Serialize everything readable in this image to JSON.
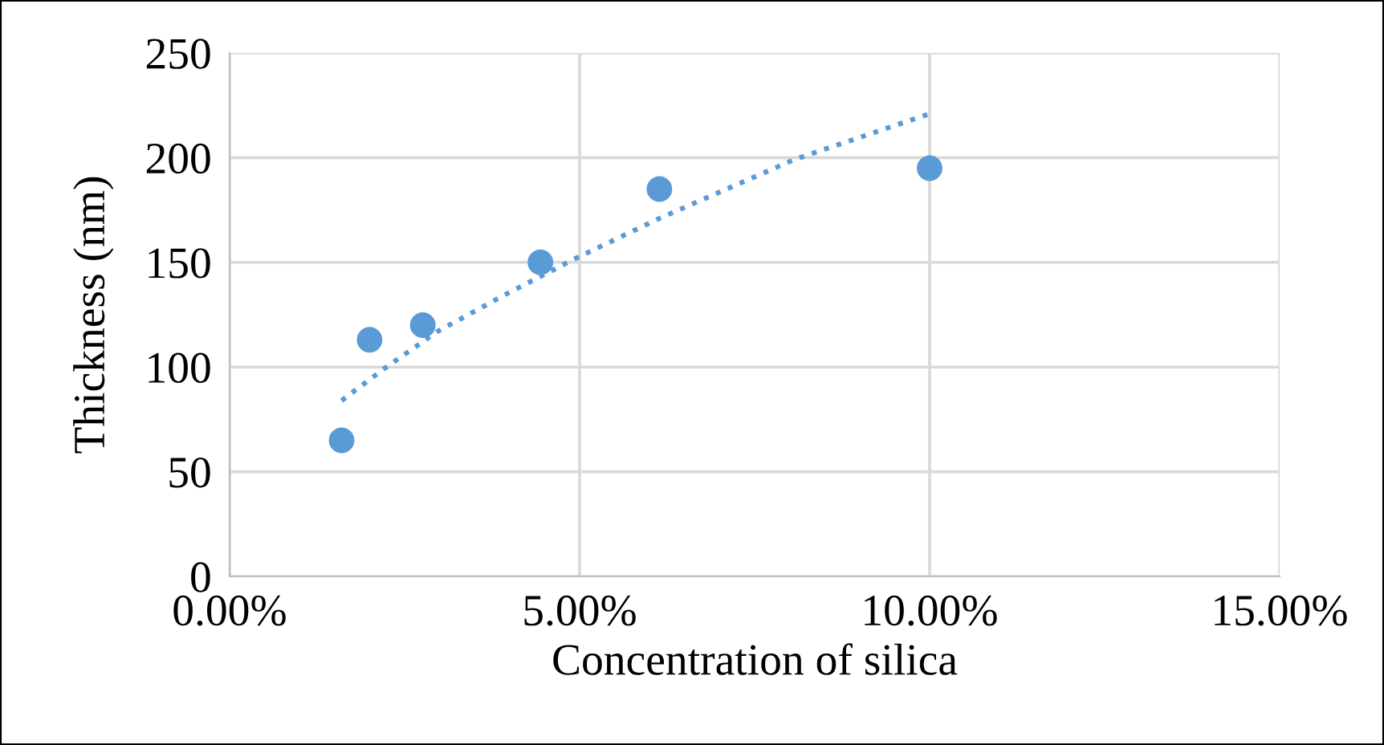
{
  "chart_data": {
    "type": "scatter",
    "xlabel": "Concentration of silica",
    "ylabel": "Thickness (nm)",
    "series": [
      {
        "color": "#5b9bd5",
        "marker": "circle",
        "x": [
          0.016,
          0.02,
          0.0276,
          0.0444,
          0.0614,
          0.1
        ],
        "values": [
          65,
          113,
          120,
          150,
          185,
          195
        ]
      },
      {
        "type": "line",
        "color": "#5b9bd5",
        "line_style": "dotted",
        "marker": "none",
        "x": [
          0.016,
          0.022,
          0.0297,
          0.0396,
          0.0495,
          0.0614,
          0.0806,
          0.1
        ],
        "values": [
          84,
          99,
          117,
          135,
          152,
          171,
          199,
          221
        ]
      }
    ],
    "xlim": [
      0,
      0.15
    ],
    "xticks": [
      {
        "value": 0,
        "label": "0.00%"
      },
      {
        "value": 0.05,
        "label": "5.00%"
      },
      {
        "value": 0.1,
        "label": "10.00%"
      },
      {
        "value": 0.15,
        "label": "15.00%"
      }
    ],
    "ylim": [
      0,
      250
    ],
    "yticks": [
      0,
      50,
      100,
      150,
      200,
      250
    ],
    "grid": true
  }
}
